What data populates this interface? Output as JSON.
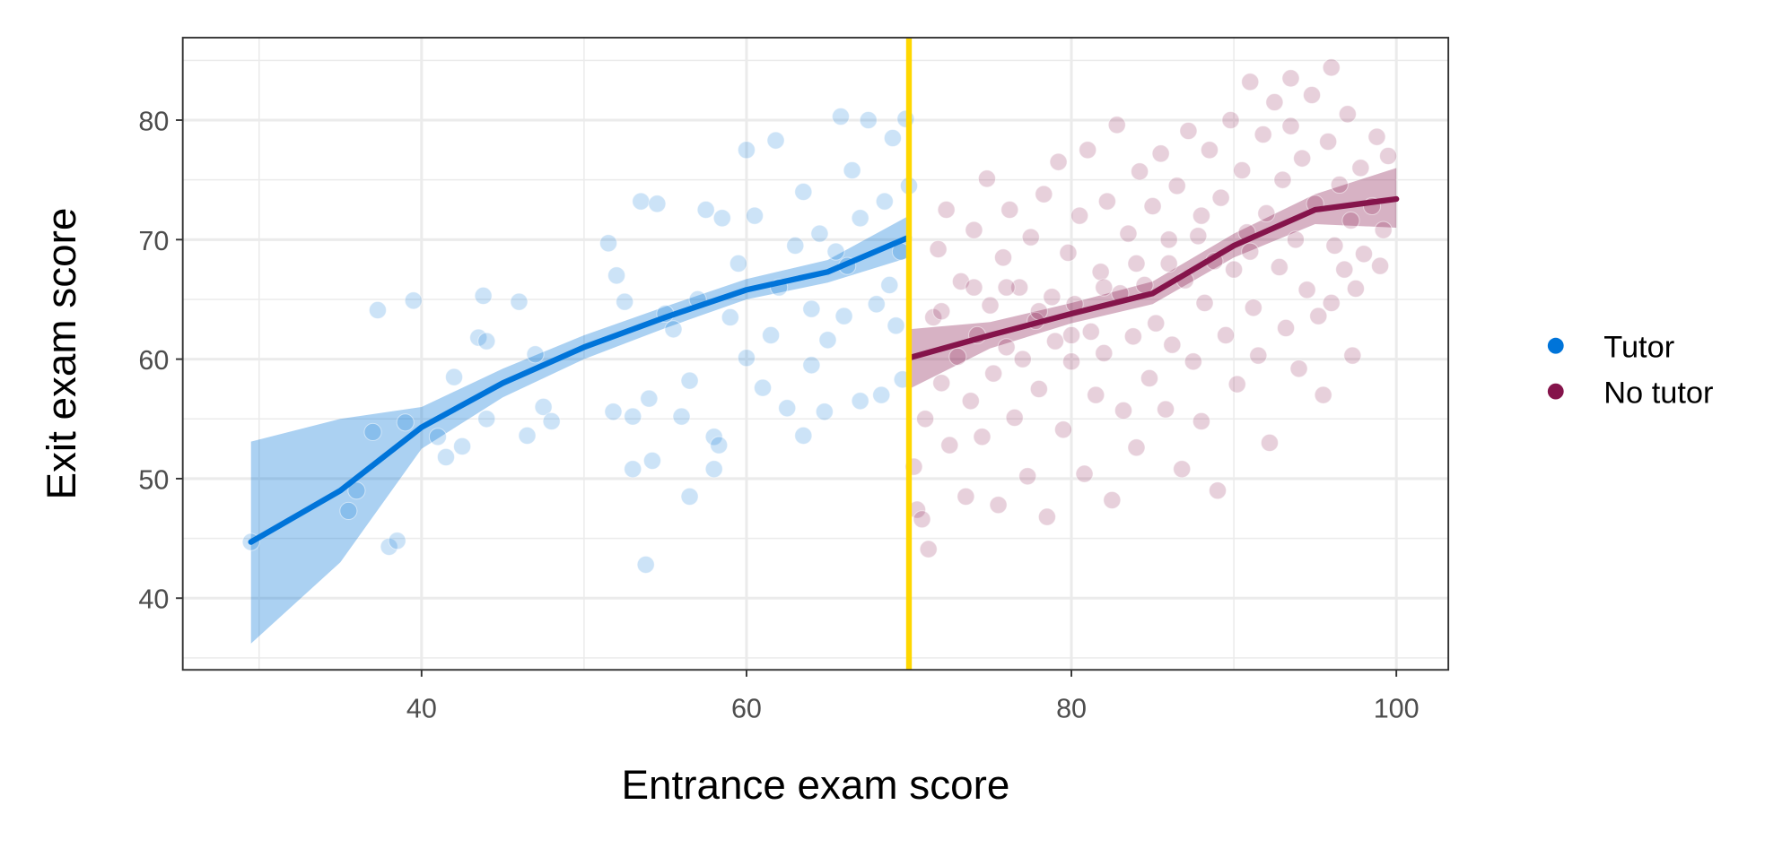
{
  "chart_data": {
    "type": "scatter",
    "title": "",
    "xlabel": "Entrance exam score",
    "ylabel": "Exit exam score",
    "xlim": [
      25.3,
      103.2
    ],
    "ylim": [
      34,
      86.9
    ],
    "x_ticks": [
      40,
      60,
      80,
      100
    ],
    "x_tick_labels": [
      "40",
      "60",
      "80",
      "100"
    ],
    "y_ticks": [
      40,
      50,
      60,
      70,
      80
    ],
    "y_tick_labels": [
      "40",
      "50",
      "60",
      "70",
      "80"
    ],
    "grid": true,
    "legend_placement": "right",
    "cutoff": {
      "x": 70,
      "color": "#FFD700"
    },
    "series": [
      {
        "name": "Tutor",
        "color": "#0074D9",
        "points": [
          [
            29.5,
            44.7
          ],
          [
            35.5,
            47.3
          ],
          [
            36,
            49
          ],
          [
            37,
            53.9
          ],
          [
            37.3,
            64.1
          ],
          [
            38,
            44.3
          ],
          [
            38.5,
            44.8
          ],
          [
            39,
            54.7
          ],
          [
            39.5,
            64.9
          ],
          [
            41,
            53.5
          ],
          [
            41.5,
            51.8
          ],
          [
            42,
            58.5
          ],
          [
            42.5,
            52.7
          ],
          [
            43.5,
            61.8
          ],
          [
            43.8,
            65.3
          ],
          [
            44,
            61.5
          ],
          [
            44,
            55
          ],
          [
            46,
            64.8
          ],
          [
            46.5,
            53.6
          ],
          [
            47,
            60.4
          ],
          [
            47.5,
            56
          ],
          [
            48,
            54.8
          ],
          [
            51.5,
            69.7
          ],
          [
            51.8,
            55.6
          ],
          [
            52,
            67
          ],
          [
            52.5,
            64.8
          ],
          [
            53,
            50.8
          ],
          [
            53,
            55.2
          ],
          [
            53.5,
            73.2
          ],
          [
            53.8,
            42.8
          ],
          [
            54,
            56.7
          ],
          [
            54.2,
            51.5
          ],
          [
            54.5,
            73
          ],
          [
            55,
            63.8
          ],
          [
            55.5,
            62.5
          ],
          [
            56,
            55.2
          ],
          [
            56.5,
            48.5
          ],
          [
            56.5,
            58.2
          ],
          [
            57,
            65
          ],
          [
            57.5,
            72.5
          ],
          [
            58,
            53.5
          ],
          [
            58,
            50.8
          ],
          [
            58.3,
            52.8
          ],
          [
            58.5,
            71.8
          ],
          [
            59,
            63.5
          ],
          [
            59.5,
            68
          ],
          [
            60,
            77.5
          ],
          [
            60,
            60.1
          ],
          [
            60.5,
            72
          ],
          [
            61,
            57.6
          ],
          [
            61.5,
            62
          ],
          [
            61.8,
            78.3
          ],
          [
            62,
            66
          ],
          [
            62.5,
            55.9
          ],
          [
            63,
            69.5
          ],
          [
            63.5,
            74
          ],
          [
            63.5,
            53.6
          ],
          [
            64,
            59.5
          ],
          [
            64.5,
            70.5
          ],
          [
            64.8,
            55.6
          ],
          [
            65,
            61.6
          ],
          [
            65.5,
            69
          ],
          [
            65.8,
            80.3
          ],
          [
            66,
            63.6
          ],
          [
            66.5,
            75.8
          ],
          [
            67,
            56.5
          ],
          [
            67,
            71.8
          ],
          [
            67.5,
            80
          ],
          [
            68,
            64.6
          ],
          [
            68.3,
            57
          ],
          [
            68.5,
            73.2
          ],
          [
            69,
            78.5
          ],
          [
            69.2,
            62.8
          ],
          [
            69.5,
            69
          ],
          [
            69.8,
            80.1
          ],
          [
            70,
            74.5
          ],
          [
            69.6,
            58.3
          ],
          [
            68.8,
            66.2
          ],
          [
            66.2,
            67.8
          ],
          [
            64,
            64.2
          ]
        ],
        "smooth": [
          [
            29.5,
            44.7
          ],
          [
            35,
            49
          ],
          [
            40,
            54.3
          ],
          [
            45,
            58
          ],
          [
            50,
            61
          ],
          [
            55,
            63.5
          ],
          [
            60,
            65.8
          ],
          [
            65,
            67.3
          ],
          [
            70,
            70.2
          ]
        ],
        "ribbon": [
          [
            29.5,
            36.2,
            53.1
          ],
          [
            35,
            43,
            55
          ],
          [
            40,
            52.5,
            56
          ],
          [
            45,
            56.8,
            59.2
          ],
          [
            50,
            60,
            62
          ],
          [
            55,
            62.6,
            64.4
          ],
          [
            60,
            65,
            66.7
          ],
          [
            65,
            66.4,
            68.3
          ],
          [
            70,
            68.5,
            72
          ]
        ]
      },
      {
        "name": "No tutor",
        "color": "#85144B",
        "points": [
          [
            70.3,
            51
          ],
          [
            70.5,
            47.4
          ],
          [
            70.8,
            46.6
          ],
          [
            71.2,
            44.1
          ],
          [
            71,
            55
          ],
          [
            71.5,
            63.5
          ],
          [
            71.8,
            69.2
          ],
          [
            72,
            58
          ],
          [
            72.3,
            72.5
          ],
          [
            72.5,
            52.8
          ],
          [
            73,
            60.2
          ],
          [
            73.2,
            66.5
          ],
          [
            73.5,
            48.5
          ],
          [
            73.8,
            56.5
          ],
          [
            74,
            70.8
          ],
          [
            74.2,
            62
          ],
          [
            74.5,
            53.5
          ],
          [
            74.8,
            75.1
          ],
          [
            75,
            64.5
          ],
          [
            75.2,
            58.8
          ],
          [
            75.5,
            47.8
          ],
          [
            75.8,
            68.5
          ],
          [
            76,
            61
          ],
          [
            76.2,
            72.5
          ],
          [
            76.5,
            55.1
          ],
          [
            76.8,
            66
          ],
          [
            77,
            60
          ],
          [
            77.3,
            50.2
          ],
          [
            77.5,
            70.2
          ],
          [
            77.8,
            63.2
          ],
          [
            78,
            57.5
          ],
          [
            78.3,
            73.8
          ],
          [
            78.5,
            46.8
          ],
          [
            78.8,
            65.2
          ],
          [
            79,
            61.5
          ],
          [
            79.2,
            76.5
          ],
          [
            79.5,
            54.1
          ],
          [
            79.8,
            68.9
          ],
          [
            80,
            59.8
          ],
          [
            80.2,
            64.6
          ],
          [
            80.5,
            72
          ],
          [
            80.8,
            50.4
          ],
          [
            81,
            77.5
          ],
          [
            81.2,
            62.3
          ],
          [
            81.5,
            57
          ],
          [
            81.8,
            67.3
          ],
          [
            82,
            60.5
          ],
          [
            82.2,
            73.2
          ],
          [
            82.5,
            48.2
          ],
          [
            82.8,
            79.6
          ],
          [
            83,
            65.5
          ],
          [
            83.2,
            55.7
          ],
          [
            83.5,
            70.5
          ],
          [
            83.8,
            61.9
          ],
          [
            84,
            52.6
          ],
          [
            84.2,
            75.7
          ],
          [
            84.5,
            66.2
          ],
          [
            84.8,
            58.4
          ],
          [
            85,
            72.8
          ],
          [
            85.2,
            63
          ],
          [
            85.5,
            77.2
          ],
          [
            85.8,
            55.8
          ],
          [
            86,
            68
          ],
          [
            86.2,
            61.2
          ],
          [
            86.5,
            74.5
          ],
          [
            86.8,
            50.8
          ],
          [
            87,
            66.6
          ],
          [
            87.2,
            79.1
          ],
          [
            87.5,
            59.8
          ],
          [
            87.8,
            70.3
          ],
          [
            88,
            54.8
          ],
          [
            88.2,
            64.7
          ],
          [
            88.5,
            77.5
          ],
          [
            88.8,
            68.2
          ],
          [
            89,
            49
          ],
          [
            89.2,
            73.5
          ],
          [
            89.5,
            62
          ],
          [
            89.8,
            80
          ],
          [
            90,
            67.5
          ],
          [
            90.2,
            57.9
          ],
          [
            90.5,
            75.8
          ],
          [
            90.8,
            70.6
          ],
          [
            91,
            83.2
          ],
          [
            91.2,
            64.3
          ],
          [
            91.5,
            60.3
          ],
          [
            91.8,
            78.8
          ],
          [
            92,
            72.2
          ],
          [
            92.2,
            53
          ],
          [
            92.5,
            81.5
          ],
          [
            92.8,
            67.7
          ],
          [
            93,
            75
          ],
          [
            93.2,
            62.6
          ],
          [
            93.5,
            79.5
          ],
          [
            93.8,
            70
          ],
          [
            94,
            59.2
          ],
          [
            94.2,
            76.8
          ],
          [
            94.5,
            65.8
          ],
          [
            94.8,
            82.1
          ],
          [
            95,
            73
          ],
          [
            95.2,
            63.6
          ],
          [
            95.5,
            57
          ],
          [
            95.8,
            78.2
          ],
          [
            96,
            84.4
          ],
          [
            96.2,
            69.5
          ],
          [
            96.5,
            74.6
          ],
          [
            96.8,
            67.5
          ],
          [
            97,
            80.5
          ],
          [
            97.2,
            71.6
          ],
          [
            97.5,
            65.9
          ],
          [
            97.8,
            76
          ],
          [
            98,
            68.8
          ],
          [
            98.5,
            72.8
          ],
          [
            98.8,
            78.6
          ],
          [
            99,
            67.8
          ],
          [
            99.5,
            77
          ],
          [
            99.2,
            70.8
          ],
          [
            97.3,
            60.3
          ],
          [
            96,
            64.7
          ],
          [
            93.5,
            83.5
          ],
          [
            91,
            69
          ],
          [
            88,
            72
          ],
          [
            86,
            70
          ],
          [
            84,
            68
          ],
          [
            82,
            66
          ],
          [
            80,
            62
          ],
          [
            78,
            64
          ],
          [
            76,
            66
          ],
          [
            74,
            66
          ],
          [
            72,
            64
          ]
        ],
        "smooth": [
          [
            70,
            60.1
          ],
          [
            75,
            62
          ],
          [
            80,
            63.8
          ],
          [
            85,
            65.5
          ],
          [
            90,
            69.5
          ],
          [
            95,
            72.5
          ],
          [
            100,
            73.4
          ]
        ],
        "ribbon": [
          [
            70,
            57.5,
            62.5
          ],
          [
            75,
            60.9,
            63.1
          ],
          [
            80,
            63,
            64.7
          ],
          [
            85,
            64.6,
            66.5
          ],
          [
            90,
            68.5,
            70.5
          ],
          [
            95,
            71.3,
            73.8
          ],
          [
            100,
            71,
            76
          ]
        ]
      }
    ]
  }
}
